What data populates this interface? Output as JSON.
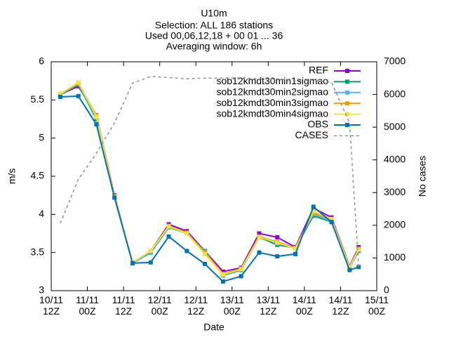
{
  "chart_data": {
    "type": "line",
    "title": "U10m",
    "subtitles": [
      "Selection: ALL    186 stations",
      "Used 00,06,12,18 + 00 01 ... 36",
      "Averaging window:  6h"
    ],
    "xlabel": "Date",
    "ylabel": "m/s",
    "y2label": "No cases",
    "x": [
      3,
      9,
      15,
      21,
      27,
      33,
      39,
      45,
      51,
      57,
      63,
      69,
      75,
      81,
      87,
      93,
      99,
      102
    ],
    "xlim": [
      0,
      108
    ],
    "xticks": [
      {
        "value": 0,
        "label": "10/11\n12Z"
      },
      {
        "value": 12,
        "label": "11/11\n00Z"
      },
      {
        "value": 24,
        "label": "11/11\n12Z"
      },
      {
        "value": 36,
        "label": "12/11\n00Z"
      },
      {
        "value": 48,
        "label": "12/11\n12Z"
      },
      {
        "value": 60,
        "label": "13/11\n00Z"
      },
      {
        "value": 72,
        "label": "13/11\n12Z"
      },
      {
        "value": 84,
        "label": "14/11\n00Z"
      },
      {
        "value": 96,
        "label": "14/11\n12Z"
      },
      {
        "value": 108,
        "label": "15/11\n00Z"
      }
    ],
    "ylim": [
      3,
      6
    ],
    "yticks": [
      3,
      3.5,
      4,
      4.5,
      5,
      5.5,
      6
    ],
    "y2lim": [
      0,
      7000
    ],
    "y2ticks": [
      0,
      1000,
      2000,
      3000,
      4000,
      5000,
      6000,
      7000
    ],
    "grid": false,
    "legend": "top right",
    "series": [
      {
        "name": "REF",
        "color": "#9400d3",
        "values": [
          5.57,
          5.68,
          5.3,
          4.25,
          3.36,
          3.52,
          3.87,
          3.78,
          3.52,
          3.25,
          3.3,
          3.75,
          3.7,
          3.57,
          4.08,
          3.96,
          3.32,
          3.57
        ]
      },
      {
        "name": "sob12kmdt30min1sigmao",
        "color": "#009e73",
        "values": [
          5.57,
          5.7,
          5.25,
          4.23,
          3.36,
          3.5,
          3.83,
          3.75,
          3.52,
          3.2,
          3.27,
          3.7,
          3.6,
          3.56,
          3.98,
          3.9,
          3.3,
          3.52
        ]
      },
      {
        "name": "sob12kmdt30min2sigmao",
        "color": "#56b4e9",
        "values": [
          5.57,
          5.71,
          5.27,
          4.23,
          3.36,
          3.51,
          3.84,
          3.75,
          3.51,
          3.21,
          3.28,
          3.71,
          3.62,
          3.56,
          4.0,
          3.91,
          3.3,
          3.53
        ]
      },
      {
        "name": "sob12kmdt30min3sigmao",
        "color": "#e69f00",
        "values": [
          5.58,
          5.72,
          5.3,
          4.24,
          3.37,
          3.52,
          3.85,
          3.76,
          3.5,
          3.22,
          3.29,
          3.71,
          3.64,
          3.56,
          4.02,
          3.93,
          3.31,
          3.55
        ]
      },
      {
        "name": "sob12kmdt30min4sigmao",
        "color": "#f0e442",
        "values": [
          5.58,
          5.73,
          5.28,
          4.23,
          3.37,
          3.52,
          3.84,
          3.75,
          3.48,
          3.21,
          3.28,
          3.7,
          3.63,
          3.55,
          4.04,
          3.94,
          3.31,
          3.54
        ]
      },
      {
        "name": "OBS",
        "color": "#0072b2",
        "values": [
          5.54,
          5.55,
          5.18,
          4.22,
          3.36,
          3.37,
          3.71,
          3.52,
          3.35,
          3.12,
          3.19,
          3.5,
          3.45,
          3.48,
          4.1,
          3.9,
          3.27,
          3.31
        ]
      },
      {
        "name": "CASES",
        "color": "#909090",
        "axis": "y2",
        "dashed": true,
        "values": [
          2060,
          3410,
          4200,
          5130,
          6350,
          6550,
          6520,
          6480,
          6500,
          6500,
          6500,
          6480,
          6480,
          6420,
          6440,
          6370,
          5130,
          730
        ]
      }
    ]
  }
}
